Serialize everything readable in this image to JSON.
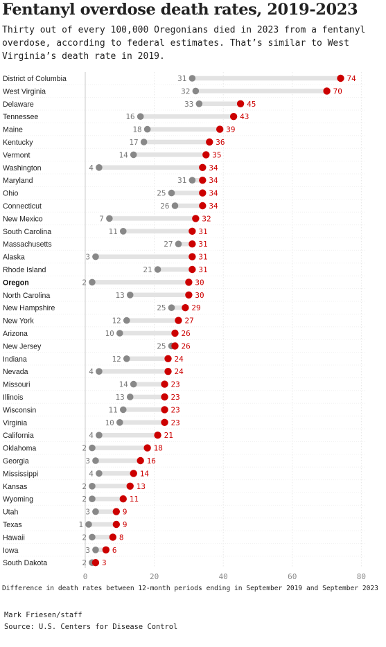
{
  "title": "Fentanyl overdose death rates, 2019-2023",
  "subtitle": "Thirty out of every 100,000 Oregonians died in 2023 from a fentanyl overdose, according to federal estimates. That’s similar to West Virginia’s death rate in 2019.",
  "note": "Difference in death rates between 12-month periods ending in September 2019 and September 2023",
  "credit": "Mark Friesen/staff",
  "source": "Source: U.S. Centers for Disease Control",
  "colors": {
    "rate_2019": "#888888",
    "rate_2023": "#cc0000",
    "connector": "#e3e3e3",
    "highlight_label": "#111111"
  },
  "chart_data": {
    "type": "dumbbell",
    "highlight": "Oregon",
    "xlim": [
      0,
      80
    ],
    "xticks": [
      "0",
      "20",
      "40",
      "60",
      "80"
    ],
    "categories": [
      "District of Columbia",
      "West Virginia",
      "Delaware",
      "Tennessee",
      "Maine",
      "Kentucky",
      "Vermont",
      "Washington",
      "Maryland",
      "Ohio",
      "Connecticut",
      "New Mexico",
      "South Carolina",
      "Massachusetts",
      "Alaska",
      "Rhode Island",
      "Oregon",
      "North Carolina",
      "New Hampshire",
      "New York",
      "Arizona",
      "New Jersey",
      "Indiana",
      "Nevada",
      "Missouri",
      "Illinois",
      "Wisconsin",
      "Virginia",
      "California",
      "Oklahoma",
      "Georgia",
      "Mississippi",
      "Kansas",
      "Wyoming",
      "Utah",
      "Texas",
      "Hawaii",
      "Iowa",
      "South Dakota"
    ],
    "rows": [
      {
        "state": "District of Columbia",
        "y2019": 31,
        "y2023": 74
      },
      {
        "state": "West Virginia",
        "y2019": 32,
        "y2023": 70
      },
      {
        "state": "Delaware",
        "y2019": 33,
        "y2023": 45
      },
      {
        "state": "Tennessee",
        "y2019": 16,
        "y2023": 43
      },
      {
        "state": "Maine",
        "y2019": 18,
        "y2023": 39
      },
      {
        "state": "Kentucky",
        "y2019": 17,
        "y2023": 36
      },
      {
        "state": "Vermont",
        "y2019": 14,
        "y2023": 35
      },
      {
        "state": "Washington",
        "y2019": 4,
        "y2023": 34
      },
      {
        "state": "Maryland",
        "y2019": 31,
        "y2023": 34
      },
      {
        "state": "Ohio",
        "y2019": 25,
        "y2023": 34
      },
      {
        "state": "Connecticut",
        "y2019": 26,
        "y2023": 34
      },
      {
        "state": "New Mexico",
        "y2019": 7,
        "y2023": 32
      },
      {
        "state": "South Carolina",
        "y2019": 11,
        "y2023": 31
      },
      {
        "state": "Massachusetts",
        "y2019": 27,
        "y2023": 31
      },
      {
        "state": "Alaska",
        "y2019": 3,
        "y2023": 31
      },
      {
        "state": "Rhode Island",
        "y2019": 21,
        "y2023": 31
      },
      {
        "state": "Oregon",
        "y2019": 2,
        "y2023": 30
      },
      {
        "state": "North Carolina",
        "y2019": 13,
        "y2023": 30
      },
      {
        "state": "New Hampshire",
        "y2019": 25,
        "y2023": 29
      },
      {
        "state": "New York",
        "y2019": 12,
        "y2023": 27
      },
      {
        "state": "Arizona",
        "y2019": 10,
        "y2023": 26
      },
      {
        "state": "New Jersey",
        "y2019": 25,
        "y2023": 26
      },
      {
        "state": "Indiana",
        "y2019": 12,
        "y2023": 24
      },
      {
        "state": "Nevada",
        "y2019": 4,
        "y2023": 24
      },
      {
        "state": "Missouri",
        "y2019": 14,
        "y2023": 23
      },
      {
        "state": "Illinois",
        "y2019": 13,
        "y2023": 23
      },
      {
        "state": "Wisconsin",
        "y2019": 11,
        "y2023": 23
      },
      {
        "state": "Virginia",
        "y2019": 10,
        "y2023": 23
      },
      {
        "state": "California",
        "y2019": 4,
        "y2023": 21
      },
      {
        "state": "Oklahoma",
        "y2019": 2,
        "y2023": 18
      },
      {
        "state": "Georgia",
        "y2019": 3,
        "y2023": 16
      },
      {
        "state": "Mississippi",
        "y2019": 4,
        "y2023": 14
      },
      {
        "state": "Kansas",
        "y2019": 2,
        "y2023": 13
      },
      {
        "state": "Wyoming",
        "y2019": 2,
        "y2023": 11
      },
      {
        "state": "Utah",
        "y2019": 3,
        "y2023": 9
      },
      {
        "state": "Texas",
        "y2019": 1,
        "y2023": 9
      },
      {
        "state": "Hawaii",
        "y2019": 2,
        "y2023": 8
      },
      {
        "state": "Iowa",
        "y2019": 3,
        "y2023": 6
      },
      {
        "state": "South Dakota",
        "y2019": 2,
        "y2023": 3
      }
    ]
  }
}
